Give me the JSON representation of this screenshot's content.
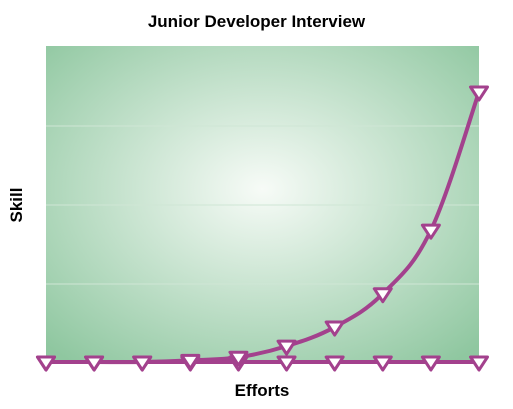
{
  "chart_data": {
    "type": "line",
    "title": "Junior Developer Interview",
    "xlabel": "Efforts",
    "ylabel": "Skill",
    "grid": true,
    "legend": "none",
    "xlim": [
      0,
      9
    ],
    "ylim": [
      0,
      4
    ],
    "series": [
      {
        "values_x": [
          0,
          1,
          2,
          3,
          4,
          5,
          6,
          7,
          8,
          9
        ],
        "values_y": [
          0,
          0,
          0,
          0.02,
          0.06,
          0.2,
          0.44,
          0.86,
          1.66,
          3.4
        ]
      },
      {
        "values_x": [
          0,
          1,
          2,
          3,
          4,
          5,
          6,
          7,
          8,
          9
        ],
        "values_y": [
          0,
          0,
          0,
          0,
          0,
          0,
          0,
          0,
          0,
          0
        ]
      }
    ],
    "colors": {
      "line": "#a3418d",
      "marker_fill": "#ffffff",
      "plot_bg_center": "#f7fbf7",
      "plot_bg_edge": "#8fc7a0",
      "grid": "#cfe6d5"
    }
  }
}
